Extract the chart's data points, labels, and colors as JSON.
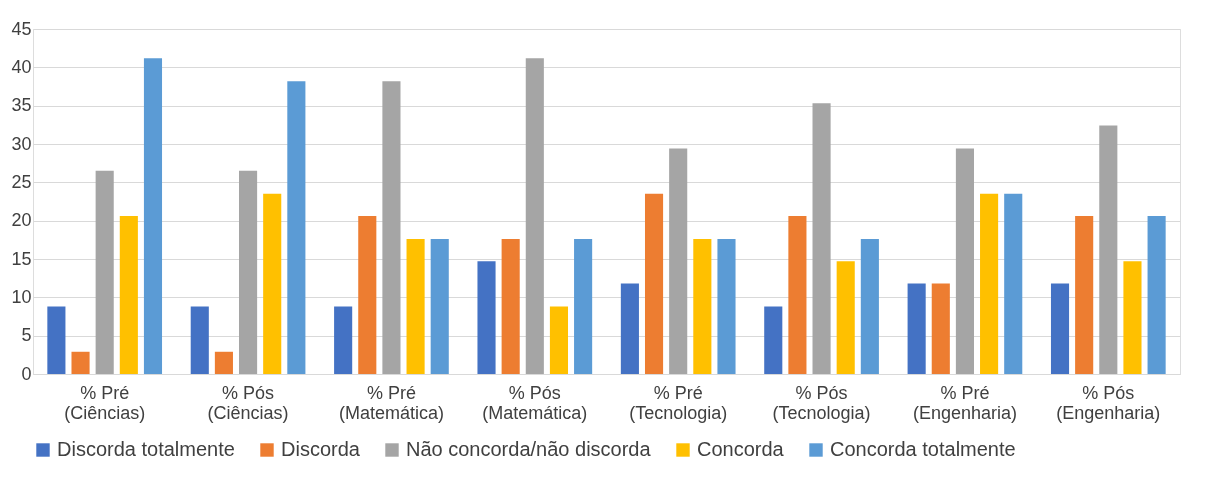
{
  "chart_data": {
    "type": "bar",
    "categories": [
      "% Pré (Ciências)",
      "% Pós (Ciências)",
      "% Pré (Matemática)",
      "% Pós (Matemática)",
      "% Pré (Tecnologia)",
      "% Pós (Tecnologia)",
      "% Pré (Engenharia)",
      "% Pós (Engenharia)"
    ],
    "series": [
      {
        "name": "Discorda totalmente",
        "color": "#4472c4",
        "values": [
          8.8,
          8.8,
          8.8,
          14.7,
          11.8,
          8.8,
          11.8,
          11.8
        ]
      },
      {
        "name": "Discorda",
        "color": "#ed7d31",
        "values": [
          2.9,
          2.9,
          20.6,
          17.6,
          23.5,
          20.6,
          11.8,
          20.6
        ]
      },
      {
        "name": "Não concorda/não discorda",
        "color": "#a5a5a5",
        "values": [
          26.5,
          26.5,
          38.2,
          41.2,
          29.4,
          35.3,
          29.4,
          32.4
        ]
      },
      {
        "name": "Concorda",
        "color": "#ffc000",
        "values": [
          20.6,
          23.5,
          17.6,
          8.8,
          17.6,
          14.7,
          23.5,
          14.7
        ]
      },
      {
        "name": "Concorda totalmente",
        "color": "#5b9bd5",
        "values": [
          41.2,
          38.2,
          17.6,
          17.6,
          17.6,
          17.6,
          23.5,
          20.6
        ]
      }
    ],
    "ylim": [
      0,
      45
    ],
    "yticks": [
      0,
      5,
      10,
      15,
      20,
      25,
      30,
      35,
      40,
      45
    ],
    "grid": "y",
    "legend": "bottom"
  }
}
